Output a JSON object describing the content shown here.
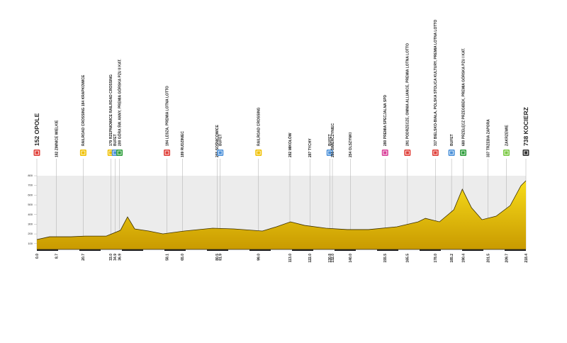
{
  "chart_data": {
    "type": "area",
    "x": [
      0,
      5.7,
      15.2,
      21.5,
      31.0,
      37.3,
      40.5,
      43.7,
      50.0,
      56.3,
      65.8,
      78.5,
      88.0,
      100.7,
      107.0,
      113.3,
      119.6,
      129.1,
      138.6,
      148.1,
      160.8,
      170.3,
      173.5,
      179.8,
      186.2,
      190.0,
      194.1,
      198.8,
      205.1,
      211.4,
      216.2,
      218.4
    ],
    "values": [
      142,
      171,
      171,
      178,
      178,
      237,
      376,
      252,
      230,
      201,
      230,
      259,
      252,
      230,
      274,
      325,
      288,
      259,
      245,
      245,
      274,
      325,
      361,
      325,
      449,
      661,
      471,
      347,
      383,
      493,
      698,
      749
    ],
    "xlim": [
      0,
      218.4
    ],
    "ylim": [
      40,
      800
    ],
    "yticks": [
      100,
      200,
      300,
      400,
      500,
      600,
      700,
      800
    ],
    "fill_top": "#f7dc1a",
    "fill_bottom": "#c99a00",
    "band_color": "#ececec",
    "waypoints": [
      {
        "km": {
          "value": 0,
          "label": "0.0"
        },
        "label": "152 OPOLE",
        "color": "#e0403a"
      },
      {
        "km": 8.7,
        "label": "182 ZIMNICE WIELKIE",
        "color": null
      },
      {
        "km": 20.7,
        "label": "RAILROAD CROSSING 184 KRAPKOWICE",
        "color": "#f0c000"
      },
      {
        "km": {
          "value": 33.0,
          "label": "33.0"
        },
        "label": "179 RZEPNIOWICE RAILROAD CROSSING",
        "color": "#f0c000"
      },
      {
        "km": 34.9,
        "label": "BUFET",
        "color": "#4a90d9"
      },
      {
        "km": 36.9,
        "label": "200 GÓRA ŚW. ANNY, PREMIA GÓRSKA PZU II KAT.",
        "color": "#2e9e3c"
      },
      {
        "km": 58.1,
        "label": "194 LESZA, PREMIA LOTNA LOTTO",
        "color": "#e0403a"
      },
      {
        "km": {
          "value": 65.0,
          "label": "65.0"
        },
        "label": "189 RUDZINIEC",
        "color": null
      },
      {
        "km": 80.5,
        "label": "265 SOŚNICOWICE",
        "color": null
      },
      {
        "km": 81.9,
        "label": "BUFET",
        "color": "#4a90d9"
      },
      {
        "km": {
          "value": 99.0,
          "label": "99.0"
        },
        "label": "RAILROAD CROSSING",
        "color": "#f0c000"
      },
      {
        "km": {
          "value": 113.0,
          "label": "113.0"
        },
        "label": "282 MIKOŁÓW",
        "color": null
      },
      {
        "km": {
          "value": 122.0,
          "label": "122.0"
        },
        "label": "287 TYCHY",
        "color": null
      },
      {
        "km": 130.8,
        "label": "BUFET",
        "color": "#4a90d9"
      },
      {
        "km": {
          "value": 132.0,
          "label": "132.0"
        },
        "label": "251 ŚWIERCZYNIEC",
        "color": null
      },
      {
        "km": {
          "value": 140.0,
          "label": "140.0"
        },
        "label": "254 OLSZYNKI",
        "color": null
      },
      {
        "km": 155.5,
        "label": "280 PREMIA SPECJALNA SPD",
        "color": "#d9419a"
      },
      {
        "km": 165.5,
        "label": "291 PODRZECZE, OMNIA ALLIANCE, PREMIA LOTNA LOTTO",
        "color": "#e0403a"
      },
      {
        "km": {
          "value": 178.0,
          "label": "178.0"
        },
        "label": "317 BIELSKO-BIAŁA, POLSKA STOLICA KULTURY, PREMIA LOTNA LOTTO",
        "color": "#e0403a"
      },
      {
        "km": 185.2,
        "label": "BUFET",
        "color": "#4a90d9"
      },
      {
        "km": 190.4,
        "label": "680 PRZEŁĘCZ PRZEGIBEK, PREMIA GÓRSKA PZU I KAT.",
        "color": "#2e9e3c"
      },
      {
        "km": 201.5,
        "label": "337 TRZEBIA ZAPORA",
        "color": null
      },
      {
        "km": 209.7,
        "label": "ZAKRZEWIE",
        "color": "#7ac943"
      },
      {
        "km": 218.4,
        "label": "738 KOCIERZ",
        "color": "#333333"
      }
    ]
  }
}
